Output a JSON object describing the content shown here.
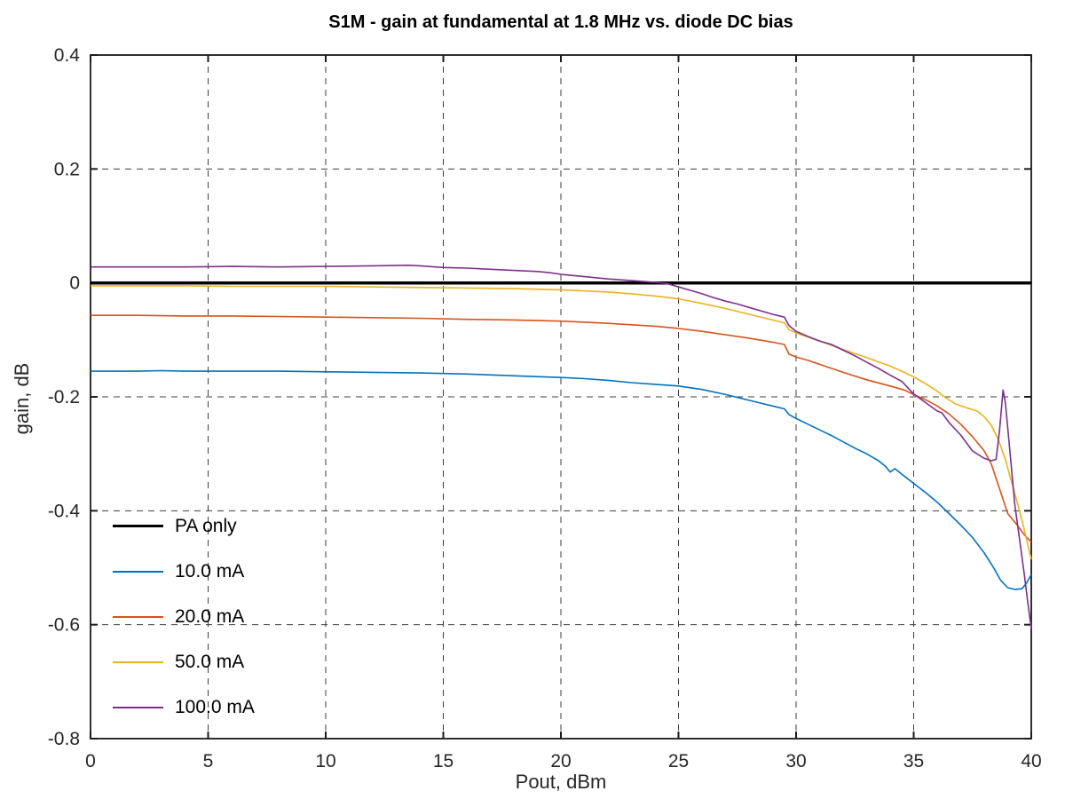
{
  "chart_data": {
    "type": "line",
    "title": "S1M - gain at fundamental at 1.8 MHz vs. diode DC bias",
    "xlabel": "Pout, dBm",
    "ylabel": "gain, dB",
    "xlim": [
      0,
      40
    ],
    "ylim": [
      -0.8,
      0.4
    ],
    "x_ticks": [
      0,
      5,
      10,
      15,
      20,
      25,
      30,
      35,
      40
    ],
    "x_tick_labels": [
      "0",
      "5",
      "10",
      "15",
      "20",
      "25",
      "30",
      "35",
      "40"
    ],
    "y_ticks": [
      0.4,
      0.2,
      0,
      -0.2,
      -0.4,
      -0.6,
      -0.8
    ],
    "y_tick_labels": [
      "0.4",
      "0.2",
      "0",
      "-0.2",
      "-0.4",
      "-0.6",
      "-0.8"
    ],
    "grid": "dashed",
    "grid_color": "#3d3d3d",
    "axis_color": "#1a1a1a",
    "tick_label_color": "#262626",
    "legend_position": "inside-lower-left",
    "series": [
      {
        "name": "PA only",
        "color": "#000000",
        "width": 3.5,
        "points": [
          [
            0,
            0
          ],
          [
            40,
            0
          ]
        ]
      },
      {
        "name": "10.0 mA",
        "color": "#0072BD",
        "width": 1.6,
        "points": [
          [
            0,
            -0.155
          ],
          [
            2,
            -0.155
          ],
          [
            3,
            -0.154
          ],
          [
            4,
            -0.155
          ],
          [
            6,
            -0.155
          ],
          [
            8,
            -0.155
          ],
          [
            10,
            -0.156
          ],
          [
            12,
            -0.157
          ],
          [
            14,
            -0.158
          ],
          [
            16,
            -0.16
          ],
          [
            18,
            -0.163
          ],
          [
            20,
            -0.166
          ],
          [
            21,
            -0.168
          ],
          [
            22,
            -0.171
          ],
          [
            23,
            -0.175
          ],
          [
            24,
            -0.178
          ],
          [
            25,
            -0.181
          ],
          [
            26,
            -0.187
          ],
          [
            27,
            -0.196
          ],
          [
            27.5,
            -0.201
          ],
          [
            28,
            -0.206
          ],
          [
            28.5,
            -0.211
          ],
          [
            29,
            -0.216
          ],
          [
            29.5,
            -0.221
          ],
          [
            29.7,
            -0.231
          ],
          [
            30,
            -0.238
          ],
          [
            30.5,
            -0.248
          ],
          [
            31,
            -0.258
          ],
          [
            31.5,
            -0.268
          ],
          [
            32,
            -0.279
          ],
          [
            32.5,
            -0.29
          ],
          [
            33,
            -0.3
          ],
          [
            33.5,
            -0.312
          ],
          [
            33.8,
            -0.322
          ],
          [
            34.0,
            -0.332
          ],
          [
            34.2,
            -0.326
          ],
          [
            34.5,
            -0.336
          ],
          [
            35,
            -0.352
          ],
          [
            35.5,
            -0.368
          ],
          [
            36,
            -0.385
          ],
          [
            36.5,
            -0.405
          ],
          [
            37,
            -0.425
          ],
          [
            37.5,
            -0.447
          ],
          [
            38,
            -0.474
          ],
          [
            38.4,
            -0.5
          ],
          [
            38.7,
            -0.522
          ],
          [
            39,
            -0.535
          ],
          [
            39.3,
            -0.538
          ],
          [
            39.6,
            -0.537
          ],
          [
            39.8,
            -0.527
          ],
          [
            40,
            -0.512
          ]
        ]
      },
      {
        "name": "20.0 mA",
        "color": "#D95319",
        "width": 1.6,
        "points": [
          [
            0,
            -0.057
          ],
          [
            2,
            -0.057
          ],
          [
            4,
            -0.058
          ],
          [
            6,
            -0.058
          ],
          [
            8,
            -0.059
          ],
          [
            10,
            -0.06
          ],
          [
            12,
            -0.061
          ],
          [
            14,
            -0.062
          ],
          [
            16,
            -0.064
          ],
          [
            18,
            -0.065
          ],
          [
            20,
            -0.067
          ],
          [
            22,
            -0.071
          ],
          [
            24,
            -0.076
          ],
          [
            25,
            -0.08
          ],
          [
            26,
            -0.085
          ],
          [
            27,
            -0.091
          ],
          [
            28,
            -0.097
          ],
          [
            29,
            -0.104
          ],
          [
            29.5,
            -0.108
          ],
          [
            29.7,
            -0.125
          ],
          [
            30,
            -0.13
          ],
          [
            30.5,
            -0.136
          ],
          [
            31,
            -0.143
          ],
          [
            32,
            -0.157
          ],
          [
            33,
            -0.17
          ],
          [
            34,
            -0.181
          ],
          [
            34.6,
            -0.188
          ],
          [
            35,
            -0.196
          ],
          [
            35.5,
            -0.205
          ],
          [
            36,
            -0.216
          ],
          [
            36.5,
            -0.23
          ],
          [
            37,
            -0.248
          ],
          [
            37.5,
            -0.27
          ],
          [
            38,
            -0.295
          ],
          [
            38.3,
            -0.318
          ],
          [
            38.6,
            -0.355
          ],
          [
            39,
            -0.405
          ],
          [
            39.4,
            -0.425
          ],
          [
            39.7,
            -0.442
          ],
          [
            40,
            -0.455
          ]
        ]
      },
      {
        "name": "50.0 mA",
        "color": "#EDB120",
        "width": 1.6,
        "points": [
          [
            0,
            -0.005
          ],
          [
            2,
            -0.005
          ],
          [
            4,
            -0.005
          ],
          [
            6,
            -0.006
          ],
          [
            8,
            -0.006
          ],
          [
            10,
            -0.006
          ],
          [
            12,
            -0.007
          ],
          [
            14,
            -0.008
          ],
          [
            16,
            -0.009
          ],
          [
            18,
            -0.01
          ],
          [
            20,
            -0.012
          ],
          [
            21,
            -0.014
          ],
          [
            22,
            -0.016
          ],
          [
            23,
            -0.019
          ],
          [
            24,
            -0.023
          ],
          [
            25,
            -0.028
          ],
          [
            26,
            -0.036
          ],
          [
            27,
            -0.045
          ],
          [
            28,
            -0.055
          ],
          [
            29,
            -0.065
          ],
          [
            29.5,
            -0.07
          ],
          [
            29.7,
            -0.082
          ],
          [
            30,
            -0.088
          ],
          [
            30.5,
            -0.095
          ],
          [
            31,
            -0.102
          ],
          [
            32,
            -0.117
          ],
          [
            33,
            -0.131
          ],
          [
            34,
            -0.146
          ],
          [
            34.6,
            -0.157
          ],
          [
            35,
            -0.165
          ],
          [
            35.5,
            -0.177
          ],
          [
            36,
            -0.19
          ],
          [
            36.3,
            -0.2
          ],
          [
            36.8,
            -0.213
          ],
          [
            37.3,
            -0.22
          ],
          [
            37.7,
            -0.225
          ],
          [
            38,
            -0.235
          ],
          [
            38.3,
            -0.25
          ],
          [
            38.6,
            -0.275
          ],
          [
            38.9,
            -0.31
          ],
          [
            39.2,
            -0.355
          ],
          [
            39.5,
            -0.4
          ],
          [
            39.7,
            -0.432
          ],
          [
            39.9,
            -0.468
          ],
          [
            40,
            -0.485
          ]
        ]
      },
      {
        "name": "100.0 mA",
        "color": "#7E2F8E",
        "width": 1.6,
        "points": [
          [
            0,
            0.028
          ],
          [
            2,
            0.028
          ],
          [
            4,
            0.028
          ],
          [
            6,
            0.029
          ],
          [
            8,
            0.028
          ],
          [
            10,
            0.029
          ],
          [
            12,
            0.03
          ],
          [
            13.5,
            0.031
          ],
          [
            14,
            0.03
          ],
          [
            15,
            0.027
          ],
          [
            16,
            0.026
          ],
          [
            17,
            0.024
          ],
          [
            18,
            0.022
          ],
          [
            19,
            0.02
          ],
          [
            19.5,
            0.018
          ],
          [
            20,
            0.015
          ],
          [
            21,
            0.011
          ],
          [
            22,
            0.007
          ],
          [
            23,
            0.004
          ],
          [
            24,
            0.001
          ],
          [
            24.5,
            -0.001
          ],
          [
            25,
            -0.007
          ],
          [
            25.5,
            -0.013
          ],
          [
            26,
            -0.019
          ],
          [
            26.5,
            -0.026
          ],
          [
            27,
            -0.032
          ],
          [
            27.5,
            -0.037
          ],
          [
            28,
            -0.043
          ],
          [
            28.5,
            -0.049
          ],
          [
            29,
            -0.055
          ],
          [
            29.5,
            -0.06
          ],
          [
            29.7,
            -0.075
          ],
          [
            30,
            -0.085
          ],
          [
            30.5,
            -0.094
          ],
          [
            31,
            -0.102
          ],
          [
            31.5,
            -0.108
          ],
          [
            32,
            -0.118
          ],
          [
            32.5,
            -0.128
          ],
          [
            33,
            -0.139
          ],
          [
            33.5,
            -0.15
          ],
          [
            34,
            -0.162
          ],
          [
            34.5,
            -0.173
          ],
          [
            35,
            -0.195
          ],
          [
            35.5,
            -0.21
          ],
          [
            36,
            -0.225
          ],
          [
            36.2,
            -0.228
          ],
          [
            36.5,
            -0.245
          ],
          [
            37,
            -0.267
          ],
          [
            37.5,
            -0.295
          ],
          [
            38,
            -0.308
          ],
          [
            38.3,
            -0.312
          ],
          [
            38.5,
            -0.31
          ],
          [
            38.65,
            -0.26
          ],
          [
            38.8,
            -0.188
          ],
          [
            38.9,
            -0.21
          ],
          [
            39.1,
            -0.3
          ],
          [
            39.3,
            -0.39
          ],
          [
            39.5,
            -0.45
          ],
          [
            39.7,
            -0.51
          ],
          [
            39.85,
            -0.56
          ],
          [
            40,
            -0.607
          ]
        ]
      }
    ]
  }
}
